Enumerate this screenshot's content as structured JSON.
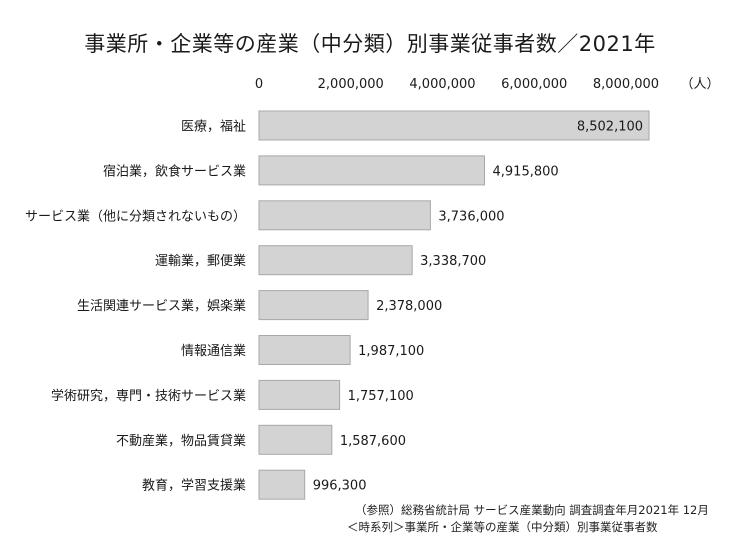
{
  "chart_data": {
    "type": "bar",
    "orientation": "horizontal",
    "title": "事業所・企業等の産業（中分類）別事業従事者数／2021年",
    "unit_label": "（人）",
    "xlim": [
      0,
      8700000
    ],
    "ticks": [
      0,
      2000000,
      4000000,
      6000000,
      8000000
    ],
    "tick_labels": [
      "0",
      "2,000,000",
      "4,000,000",
      "6,000,000",
      "8,000,000"
    ],
    "categories": [
      "医療，福祉",
      "宿泊業，飲食サービス業",
      "サービス業（他に分類されないもの）",
      "運輸業，郵便業",
      "生活関連サービス業，娯楽業",
      "情報通信業",
      "学術研究，専門・技術サービス業",
      "不動産業，物品賃貸業",
      "教育，学習支援業"
    ],
    "values": [
      8502100,
      4915800,
      3736000,
      3338700,
      2378000,
      1987100,
      1757100,
      1587600,
      996300
    ],
    "value_labels": [
      "8,502,100",
      "4,915,800",
      "3,736,000",
      "3,338,700",
      "2,378,000",
      "1,987,100",
      "1,757,100",
      "1,587,600",
      "996,300"
    ],
    "grid": false
  },
  "source": {
    "line1": "（参照）総務省統計局 サービス産業動向 調査調査年月2021年 12月",
    "line2": "＜時系列＞事業所・企業等の産業（中分類）別事業従事者数"
  }
}
